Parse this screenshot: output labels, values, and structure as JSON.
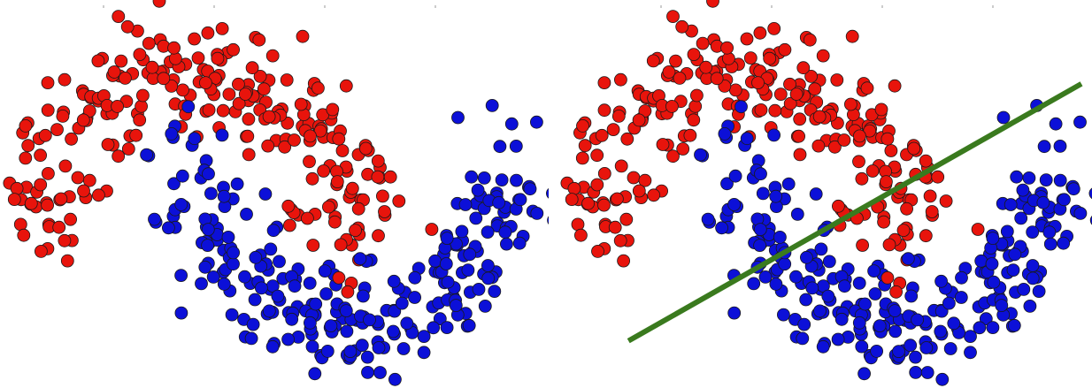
{
  "colors": {
    "class_red": "#e8140c",
    "class_blue": "#0c10d8",
    "outline": "#1a1a1a",
    "decision_line": "#3a7a1e",
    "tick": "#9a9a9a"
  },
  "chart_data": [
    {
      "type": "scatter",
      "panel": "left",
      "title": "",
      "xlabel": "",
      "ylabel": "",
      "xlim": [
        -1.2,
        2.2
      ],
      "ylim": [
        -0.8,
        1.3
      ],
      "grid": false,
      "legend": "none",
      "classes": [
        {
          "color": "red",
          "n": 260,
          "shape": "moon-upper",
          "noise": 0.17
        },
        {
          "color": "blue",
          "n": 260,
          "shape": "moon-lower",
          "noise": 0.17
        }
      ]
    },
    {
      "type": "scatter",
      "panel": "right",
      "title": "",
      "xlabel": "",
      "ylabel": "",
      "xlim": [
        -1.2,
        2.2
      ],
      "ylim": [
        -0.8,
        1.3
      ],
      "grid": false,
      "legend": "none",
      "classes": [
        {
          "color": "red",
          "n": 260,
          "shape": "moon-upper",
          "noise": 0.17
        },
        {
          "color": "blue",
          "n": 260,
          "shape": "moon-lower",
          "noise": 0.17
        }
      ],
      "decision_boundary": {
        "type": "linear",
        "x": [
          -0.8,
          2.2
        ],
        "y": [
          -0.62,
          0.95
        ]
      }
    }
  ]
}
